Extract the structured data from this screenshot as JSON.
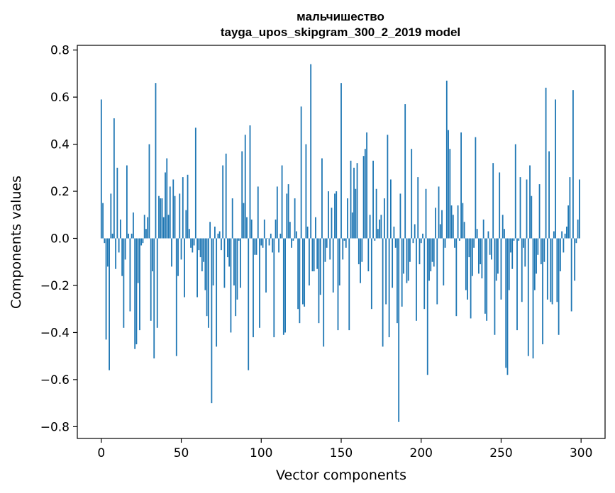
{
  "chart_data": {
    "type": "bar",
    "title_line1": "мальчишество",
    "title_line2": "tayga_upos_skipgram_300_2_2019 model",
    "xlabel": "Vector components",
    "ylabel": "Components values",
    "xlim": [
      -15,
      315
    ],
    "ylim": [
      -0.85,
      0.82
    ],
    "xticks": [
      0,
      50,
      100,
      150,
      200,
      250,
      300
    ],
    "yticks": [
      -0.8,
      -0.6,
      -0.4,
      -0.2,
      0.0,
      0.2,
      0.4,
      0.6,
      0.8
    ],
    "ytick_labels": [
      "−0.8",
      "−0.6",
      "−0.4",
      "−0.2",
      "0.0",
      "0.2",
      "0.4",
      "0.6",
      "0.8"
    ],
    "bar_color": "#1f77b4",
    "values": [
      0.59,
      0.15,
      -0.02,
      -0.43,
      -0.12,
      -0.56,
      0.19,
      0.02,
      0.51,
      -0.13,
      0.3,
      -0.06,
      0.08,
      -0.16,
      -0.38,
      -0.09,
      0.31,
      0.02,
      -0.31,
      0.02,
      0.11,
      -0.47,
      -0.45,
      -0.19,
      -0.39,
      -0.03,
      -0.02,
      0.1,
      0.04,
      0.09,
      0.4,
      -0.35,
      -0.14,
      -0.51,
      0.66,
      -0.38,
      0.18,
      0.17,
      0.17,
      0.09,
      0.28,
      0.34,
      0.1,
      0.22,
      -0.12,
      0.25,
      0.18,
      -0.5,
      -0.16,
      0.19,
      -0.09,
      0.26,
      -0.25,
      0.12,
      0.27,
      0.04,
      -0.04,
      -0.06,
      -0.03,
      0.47,
      -0.25,
      -0.05,
      -0.08,
      -0.14,
      -0.1,
      -0.22,
      -0.33,
      -0.38,
      0.07,
      -0.7,
      -0.2,
      0.05,
      -0.46,
      0.02,
      0.03,
      -0.05,
      0.31,
      -0.21,
      0.36,
      -0.08,
      -0.12,
      -0.4,
      0.17,
      -0.2,
      -0.33,
      -0.26,
      -0.01,
      -0.21,
      0.37,
      0.15,
      0.44,
      0.09,
      -0.56,
      0.48,
      0.08,
      -0.42,
      -0.07,
      -0.07,
      0.22,
      -0.38,
      -0.03,
      -0.04,
      0.08,
      -0.23,
      0.0,
      -0.03,
      0.02,
      -0.06,
      -0.42,
      0.08,
      0.22,
      -0.06,
      0.02,
      0.31,
      -0.41,
      -0.4,
      0.19,
      0.23,
      0.07,
      -0.04,
      -0.01,
      0.17,
      0.03,
      -0.3,
      -0.36,
      0.56,
      -0.28,
      -0.29,
      0.4,
      0.05,
      -0.2,
      0.74,
      -0.14,
      -0.14,
      0.09,
      -0.13,
      -0.36,
      -0.24,
      0.34,
      -0.46,
      -0.1,
      -0.04,
      0.2,
      -0.09,
      0.13,
      -0.23,
      0.19,
      0.2,
      -0.39,
      -0.2,
      0.66,
      -0.09,
      -0.01,
      -0.04,
      0.17,
      -0.39,
      0.33,
      0.11,
      0.3,
      0.21,
      0.32,
      -0.11,
      -0.19,
      -0.1,
      0.35,
      0.38,
      0.45,
      -0.14,
      0.1,
      -0.3,
      0.33,
      -0.01,
      0.21,
      0.04,
      0.08,
      0.1,
      -0.46,
      0.17,
      -0.28,
      0.44,
      -0.42,
      0.25,
      -0.21,
      0.05,
      -0.04,
      -0.36,
      -0.78,
      0.19,
      -0.29,
      -0.15,
      0.57,
      -0.19,
      -0.18,
      -0.1,
      0.38,
      -0.02,
      0.06,
      -0.35,
      0.26,
      -0.11,
      -0.02,
      0.02,
      -0.3,
      0.21,
      -0.58,
      -0.18,
      -0.14,
      -0.1,
      -0.12,
      0.13,
      -0.28,
      0.22,
      0.06,
      0.12,
      -0.2,
      -0.04,
      0.67,
      0.46,
      0.38,
      0.14,
      0.1,
      -0.04,
      -0.33,
      0.14,
      -0.01,
      0.45,
      0.15,
      0.07,
      -0.22,
      -0.26,
      -0.08,
      -0.34,
      -0.16,
      -0.04,
      0.43,
      0.04,
      -0.15,
      -0.11,
      -0.17,
      0.08,
      -0.32,
      -0.35,
      0.03,
      -0.07,
      -0.09,
      0.32,
      -0.41,
      -0.18,
      -0.15,
      0.28,
      -0.26,
      0.1,
      0.04,
      -0.55,
      -0.58,
      -0.22,
      -0.06,
      -0.13,
      -0.01,
      0.4,
      -0.39,
      -0.01,
      0.26,
      -0.27,
      -0.04,
      -0.12,
      0.25,
      -0.5,
      0.31,
      0.18,
      -0.51,
      -0.22,
      -0.15,
      -0.07,
      0.23,
      -0.11,
      -0.45,
      -0.1,
      0.64,
      -0.26,
      0.37,
      -0.27,
      -0.28,
      0.03,
      0.59,
      -0.27,
      -0.41,
      -0.14,
      0.03,
      -0.06,
      0.02,
      0.05,
      0.14,
      0.26,
      -0.31,
      0.63,
      -0.18,
      -0.02,
      0.08,
      0.25
    ]
  }
}
